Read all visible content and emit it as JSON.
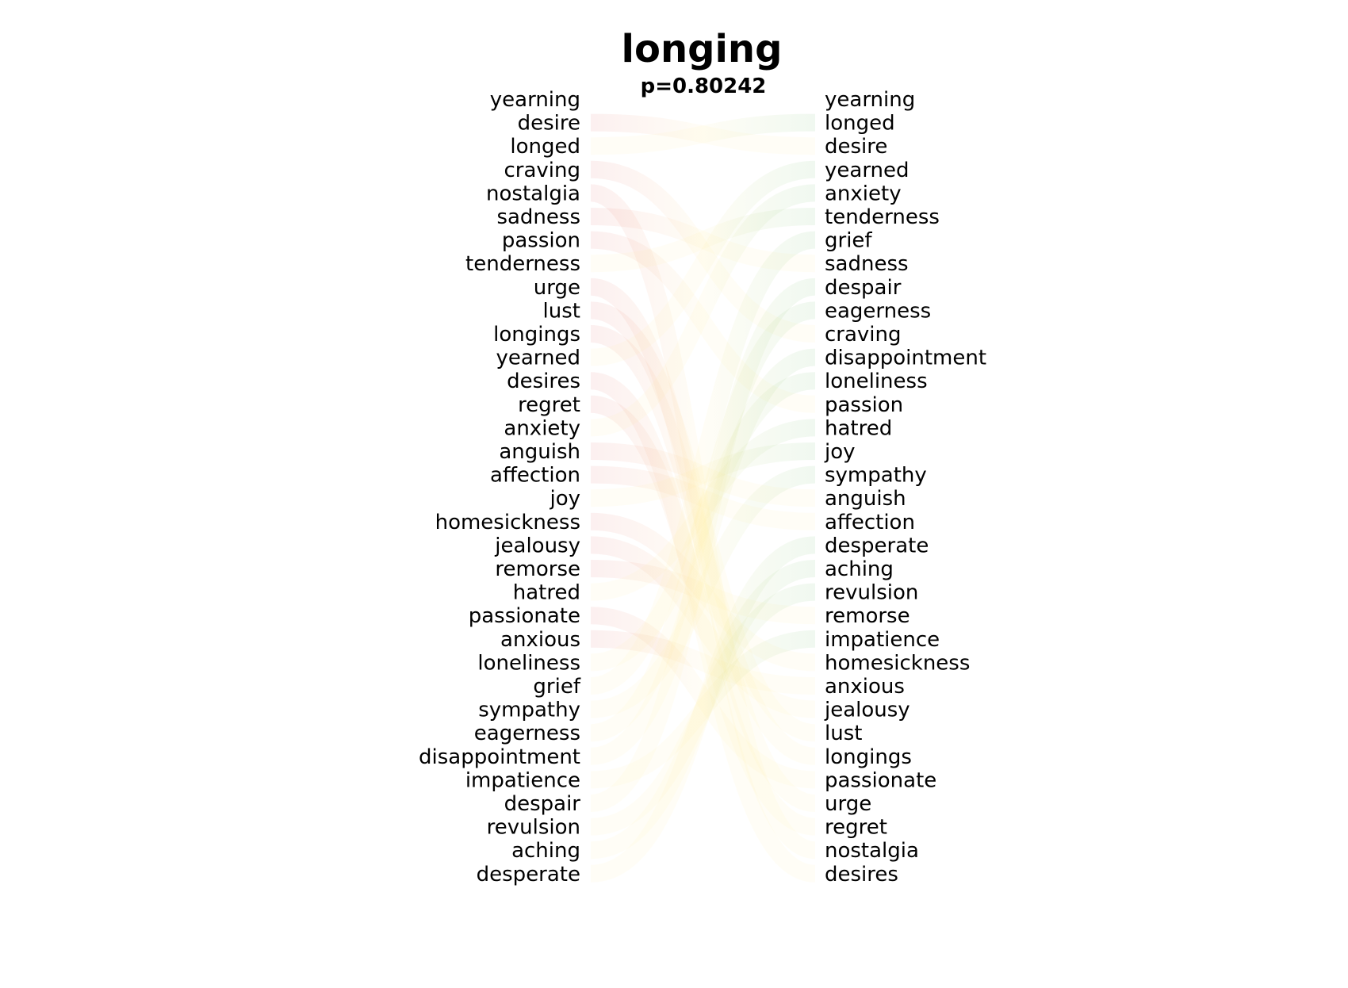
{
  "chart_data": {
    "type": "bump",
    "title": "longing",
    "subtitle": "p=0.80242",
    "left_ranking": [
      "yearning",
      "desire",
      "longed",
      "craving",
      "nostalgia",
      "sadness",
      "passion",
      "tenderness",
      "urge",
      "lust",
      "longings",
      "yearned",
      "desires",
      "regret",
      "anxiety",
      "anguish",
      "affection",
      "joy",
      "homesickness",
      "jealousy",
      "remorse",
      "hatred",
      "passionate",
      "anxious",
      "loneliness",
      "grief",
      "sympathy",
      "eagerness",
      "disappointment",
      "impatience",
      "despair",
      "revulsion",
      "aching",
      "desperate"
    ],
    "right_ranking": [
      "yearning",
      "longed",
      "desire",
      "yearned",
      "anxiety",
      "tenderness",
      "grief",
      "sadness",
      "despair",
      "eagerness",
      "craving",
      "disappointment",
      "loneliness",
      "passion",
      "hatred",
      "joy",
      "sympathy",
      "anguish",
      "affection",
      "desperate",
      "aching",
      "revulsion",
      "remorse",
      "impatience",
      "homesickness",
      "anxious",
      "jealousy",
      "lust",
      "longings",
      "passionate",
      "urge",
      "regret",
      "nostalgia",
      "desires"
    ],
    "colors": {
      "falling_start": "#d62728",
      "rising_end": "#2ca02c",
      "mid": "#ffe680",
      "text": "#000000"
    }
  }
}
